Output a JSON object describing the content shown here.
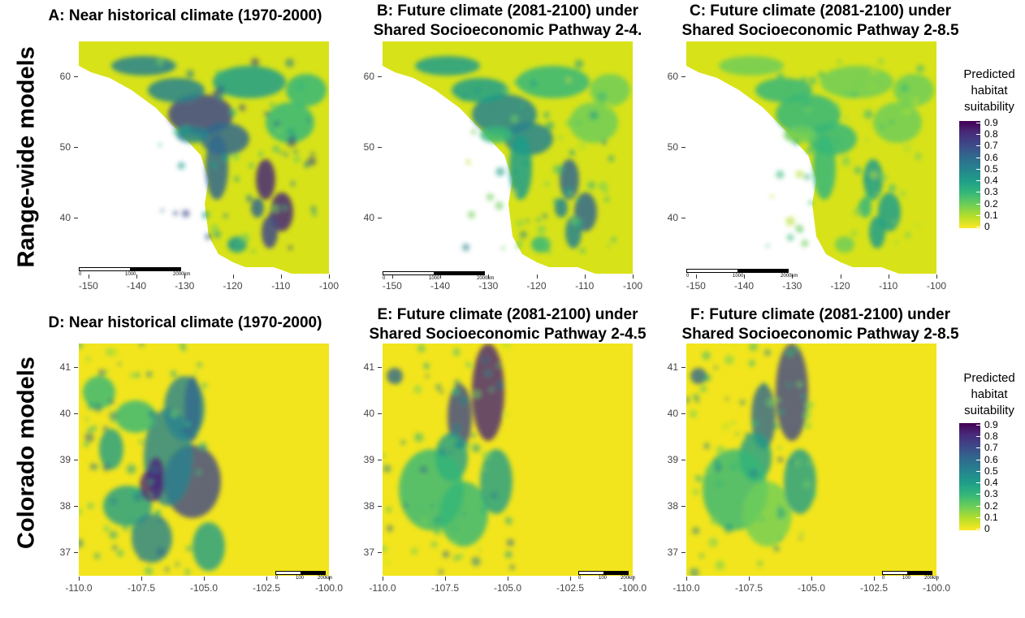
{
  "row_labels": {
    "top": "Range-wide models",
    "bottom": "Colorado models"
  },
  "panels": [
    {
      "title_line1": "A: Near historical climate (1970-2000)",
      "title_line2": ""
    },
    {
      "title_line1": "B: Future climate (2081-2100) under",
      "title_line2": "Shared Socioeconomic Pathway 2-4."
    },
    {
      "title_line1": "C: Future climate (2081-2100) under",
      "title_line2": "Shared Socioeconomic Pathway 2-8.5"
    },
    {
      "title_line1": "D: Near historical climate (1970-2000)",
      "title_line2": ""
    },
    {
      "title_line1": "E: Future climate (2081-2100) under",
      "title_line2": "Shared Socioeconomic Pathway 2-4.5"
    },
    {
      "title_line1": "F: Future climate (2081-2100) under",
      "title_line2": "Shared Socioeconomic Pathway 2-8.5"
    }
  ],
  "legend": {
    "title_l1": "Predicted",
    "title_l2": "habitat",
    "title_l3": "suitability",
    "labels": [
      "0.9",
      "0.8",
      "0.7",
      "0.6",
      "0.5",
      "0.4",
      "0.3",
      "0.2",
      "0.1",
      "0"
    ]
  },
  "scalebars": {
    "range": {
      "l0": "0",
      "l1": "1000",
      "l2": "2000km"
    },
    "colorado": {
      "l0": "0",
      "l1": "100",
      "l2": "200km"
    }
  },
  "colors": {
    "low": "#fde725",
    "mid": "#21918c",
    "high": "#440154"
  },
  "chart_data": [
    {
      "type": "heatmap",
      "panel": "A",
      "title": "A: Near historical climate (1970-2000)",
      "x_ticks": [
        "-150",
        "-140",
        "-130",
        "-120",
        "-110",
        "-100"
      ],
      "y_ticks": [
        "60",
        "50",
        "40"
      ],
      "xlim": [
        -152,
        -100
      ],
      "ylim": [
        32,
        65
      ],
      "value_range": [
        0,
        0.9
      ]
    },
    {
      "type": "heatmap",
      "panel": "B",
      "title": "B: Future climate (2081-2100) under Shared Socioeconomic Pathway 2-4.",
      "x_ticks": [
        "-150",
        "-140",
        "-130",
        "-120",
        "-110",
        "-100"
      ],
      "y_ticks": [
        "60",
        "50",
        "40"
      ],
      "xlim": [
        -152,
        -100
      ],
      "ylim": [
        32,
        65
      ],
      "value_range": [
        0,
        0.9
      ]
    },
    {
      "type": "heatmap",
      "panel": "C",
      "title": "C: Future climate (2081-2100) under Shared Socioeconomic Pathway 2-8.5",
      "x_ticks": [
        "-150",
        "-140",
        "-130",
        "-120",
        "-110",
        "-100"
      ],
      "y_ticks": [
        "60",
        "50",
        "40"
      ],
      "xlim": [
        -152,
        -100
      ],
      "ylim": [
        32,
        65
      ],
      "value_range": [
        0,
        0.9
      ]
    },
    {
      "type": "heatmap",
      "panel": "D",
      "title": "D: Near historical climate (1970-2000)",
      "x_ticks": [
        "-110.0",
        "-107.5",
        "-105.0",
        "-102.5",
        "-100.0"
      ],
      "y_ticks": [
        "41",
        "40",
        "39",
        "38",
        "37"
      ],
      "xlim": [
        -110,
        -100
      ],
      "ylim": [
        36.5,
        41.5
      ],
      "value_range": [
        0,
        0.9
      ]
    },
    {
      "type": "heatmap",
      "panel": "E",
      "title": "E: Future climate (2081-2100) under Shared Socioeconomic Pathway 2-4.5",
      "x_ticks": [
        "-110.0",
        "-107.5",
        "-105.0",
        "-102.5",
        "-100.0"
      ],
      "y_ticks": [
        "41",
        "40",
        "39",
        "38",
        "37"
      ],
      "xlim": [
        -110,
        -100
      ],
      "ylim": [
        36.5,
        41.5
      ],
      "value_range": [
        0,
        0.9
      ]
    },
    {
      "type": "heatmap",
      "panel": "F",
      "title": "F: Future climate (2081-2100) under Shared Socioeconomic Pathway 2-8.5",
      "x_ticks": [
        "-110.0",
        "-107.5",
        "-105.0",
        "-102.5",
        "-100.0"
      ],
      "y_ticks": [
        "41",
        "40",
        "39",
        "38",
        "37"
      ],
      "xlim": [
        -110,
        -100
      ],
      "ylim": [
        36.5,
        41.5
      ],
      "value_range": [
        0,
        0.9
      ]
    }
  ]
}
